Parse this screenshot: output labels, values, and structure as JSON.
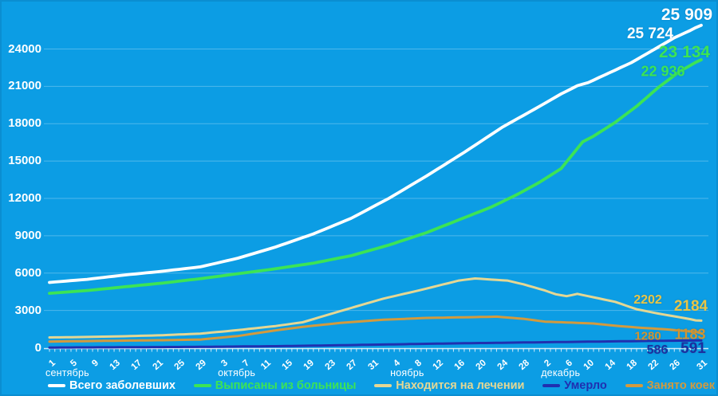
{
  "chart_data": {
    "type": "line",
    "title": "",
    "days": 122,
    "grid": "horizontal",
    "ylim": [
      0,
      26000
    ],
    "y_ticks": [
      0,
      3000,
      6000,
      9000,
      12000,
      15000,
      18000,
      21000,
      24000
    ],
    "x_tick_days": [
      0,
      4,
      8,
      12,
      16,
      20,
      24,
      28,
      32,
      36,
      40,
      44,
      48,
      52,
      56,
      60,
      64,
      68,
      72,
      76,
      80,
      84,
      88,
      92,
      96,
      100,
      104,
      108,
      112,
      116,
      121
    ],
    "x_tick_labels": [
      "1",
      "5",
      "9",
      "13",
      "17",
      "21",
      "25",
      "29",
      "3",
      "7",
      "11",
      "15",
      "19",
      "23",
      "27",
      "31",
      "4",
      "8",
      "12",
      "16",
      "20",
      "24",
      "28",
      "2",
      "6",
      "10",
      "14",
      "18",
      "22",
      "26",
      "31"
    ],
    "months": [
      {
        "label": "сентябрь",
        "first_tick_day": 0
      },
      {
        "label": "октябрь",
        "first_tick_day": 32
      },
      {
        "label": "ноябрь",
        "first_tick_day": 64
      },
      {
        "label": "декабрь",
        "first_tick_day": 92
      }
    ],
    "series": [
      {
        "name": "Всего заболевших",
        "color": "#ffffff",
        "label_color": "#ffffff",
        "prev_label": "25 724",
        "last_label": "25 909",
        "values": [
          5250,
          5286,
          5321,
          5357,
          5393,
          5429,
          5464,
          5500,
          5550,
          5600,
          5650,
          5700,
          5750,
          5800,
          5850,
          5893,
          5936,
          5979,
          6021,
          6064,
          6107,
          6150,
          6200,
          6250,
          6300,
          6350,
          6400,
          6450,
          6500,
          6600,
          6700,
          6800,
          6900,
          7000,
          7100,
          7200,
          7329,
          7457,
          7586,
          7714,
          7843,
          7971,
          8100,
          8250,
          8400,
          8550,
          8700,
          8850,
          9000,
          9150,
          9329,
          9507,
          9686,
          9864,
          10043,
          10221,
          10400,
          10629,
          10857,
          11086,
          11314,
          11543,
          11771,
          12000,
          12257,
          12514,
          12771,
          13029,
          13286,
          13543,
          13800,
          14071,
          14343,
          14614,
          14886,
          15157,
          15429,
          15700,
          15986,
          16271,
          16557,
          16843,
          17129,
          17414,
          17700,
          17943,
          18186,
          18429,
          18671,
          18914,
          19157,
          19400,
          19650,
          19900,
          20150,
          20400,
          20617,
          20833,
          21050,
          21175,
          21300,
          21500,
          21700,
          21900,
          22100,
          22300,
          22500,
          22700,
          22900,
          23150,
          23400,
          23650,
          23900,
          24150,
          24400,
          24650,
          24900,
          25100,
          25300,
          25500,
          25724,
          25909
        ]
      },
      {
        "name": "Выписаны из больницы",
        "color": "#3ce455",
        "label_color": "#3ce455",
        "prev_label": "22 936",
        "last_label": "23 134",
        "values": [
          4380,
          4411,
          4443,
          4474,
          4506,
          4537,
          4569,
          4600,
          4643,
          4686,
          4729,
          4771,
          4814,
          4857,
          4900,
          4943,
          4986,
          5029,
          5071,
          5114,
          5157,
          5200,
          5250,
          5300,
          5350,
          5400,
          5450,
          5500,
          5550,
          5607,
          5664,
          5721,
          5779,
          5836,
          5893,
          5950,
          6007,
          6064,
          6121,
          6179,
          6236,
          6293,
          6350,
          6414,
          6479,
          6543,
          6607,
          6671,
          6736,
          6800,
          6886,
          6971,
          7057,
          7143,
          7229,
          7314,
          7400,
          7521,
          7643,
          7764,
          7886,
          8007,
          8129,
          8250,
          8393,
          8536,
          8679,
          8821,
          8964,
          9107,
          9250,
          9421,
          9593,
          9764,
          9936,
          10107,
          10279,
          10450,
          10620,
          10790,
          10960,
          11130,
          11300,
          11510,
          11720,
          11930,
          12140,
          12350,
          12588,
          12825,
          13063,
          13300,
          13575,
          13850,
          14125,
          14400,
          14938,
          15475,
          16013,
          16550,
          16775,
          17000,
          17275,
          17550,
          17825,
          18100,
          18425,
          18750,
          19075,
          19400,
          19775,
          20150,
          20525,
          20900,
          21225,
          21550,
          21875,
          22200,
          22445,
          22690,
          22936,
          23134
        ]
      },
      {
        "name": "Находится на лечении",
        "color": "#e4d794",
        "label_color": "#e9c546",
        "prev_label": "2202",
        "last_label": "2184",
        "values": [
          830,
          836,
          841,
          847,
          853,
          859,
          864,
          870,
          879,
          887,
          896,
          904,
          913,
          921,
          930,
          941,
          953,
          964,
          976,
          987,
          999,
          1010,
          1029,
          1047,
          1066,
          1084,
          1103,
          1121,
          1140,
          1180,
          1220,
          1260,
          1300,
          1340,
          1380,
          1420,
          1467,
          1514,
          1561,
          1609,
          1656,
          1703,
          1750,
          1810,
          1870,
          1930,
          1990,
          2050,
          2179,
          2307,
          2436,
          2564,
          2693,
          2821,
          2950,
          3075,
          3200,
          3325,
          3450,
          3575,
          3700,
          3825,
          3950,
          4050,
          4150,
          4250,
          4350,
          4450,
          4550,
          4650,
          4757,
          4864,
          4971,
          5079,
          5186,
          5293,
          5400,
          5457,
          5513,
          5570,
          5540,
          5510,
          5480,
          5453,
          5427,
          5400,
          5300,
          5200,
          5100,
          4975,
          4850,
          4725,
          4600,
          4450,
          4300,
          4225,
          4150,
          4240,
          4330,
          4240,
          4150,
          4058,
          3966,
          3874,
          3782,
          3690,
          3543,
          3395,
          3248,
          3100,
          3013,
          2925,
          2838,
          2750,
          2675,
          2600,
          2525,
          2450,
          2375,
          2300,
          2202,
          2184
        ]
      },
      {
        "name": "Умерло",
        "color": "#2030b0",
        "label_color": "#1c2f9f",
        "prev_label": "586",
        "last_label": "591",
        "values": [
          20,
          22,
          24,
          25,
          27,
          29,
          31,
          33,
          34,
          36,
          38,
          40,
          41,
          43,
          45,
          47,
          49,
          51,
          54,
          56,
          58,
          60,
          62,
          64,
          66,
          69,
          71,
          73,
          75,
          79,
          83,
          87,
          91,
          95,
          99,
          103,
          106,
          110,
          114,
          118,
          122,
          126,
          130,
          136,
          143,
          149,
          156,
          162,
          169,
          175,
          181,
          188,
          194,
          201,
          207,
          214,
          220,
          227,
          234,
          241,
          249,
          256,
          263,
          270,
          277,
          284,
          291,
          299,
          306,
          313,
          320,
          326,
          332,
          338,
          344,
          350,
          356,
          363,
          369,
          375,
          381,
          387,
          393,
          399,
          405,
          410,
          416,
          421,
          426,
          432,
          437,
          443,
          448,
          453,
          459,
          464,
          469,
          475,
          480,
          485,
          491,
          496,
          501,
          507,
          512,
          518,
          523,
          528,
          534,
          539,
          545,
          549,
          554,
          558,
          562,
          567,
          571,
          575,
          580,
          583,
          586,
          591
        ]
      },
      {
        "name": "Занято коек",
        "color": "#d29a3e",
        "label_color": "#d29430",
        "prev_label": "1280",
        "last_label": "1183",
        "values": [
          500,
          506,
          511,
          517,
          523,
          529,
          534,
          540,
          545,
          550,
          555,
          560,
          565,
          570,
          575,
          580,
          585,
          590,
          595,
          600,
          605,
          610,
          617,
          624,
          631,
          639,
          646,
          653,
          660,
          701,
          743,
          784,
          826,
          867,
          909,
          950,
          1014,
          1079,
          1143,
          1207,
          1271,
          1336,
          1400,
          1456,
          1512,
          1568,
          1624,
          1680,
          1726,
          1771,
          1817,
          1863,
          1909,
          1954,
          2000,
          2031,
          2063,
          2094,
          2125,
          2156,
          2188,
          2219,
          2250,
          2269,
          2288,
          2306,
          2325,
          2344,
          2363,
          2381,
          2400,
          2407,
          2414,
          2421,
          2429,
          2436,
          2443,
          2450,
          2458,
          2467,
          2475,
          2483,
          2492,
          2500,
          2466,
          2432,
          2398,
          2364,
          2330,
          2273,
          2215,
          2158,
          2100,
          2084,
          2068,
          2052,
          2036,
          2020,
          2003,
          1985,
          1968,
          1950,
          1905,
          1860,
          1815,
          1770,
          1736,
          1702,
          1668,
          1634,
          1600,
          1575,
          1550,
          1525,
          1500,
          1463,
          1425,
          1388,
          1350,
          1315,
          1280,
          1183
        ]
      }
    ],
    "legend_position": "bottom"
  },
  "colors": {
    "background": "#0c9de4",
    "gridline": "rgba(255,255,255,0.28)",
    "axis": "rgba(255,255,255,0.8)",
    "tick_text": "#ffffff"
  }
}
